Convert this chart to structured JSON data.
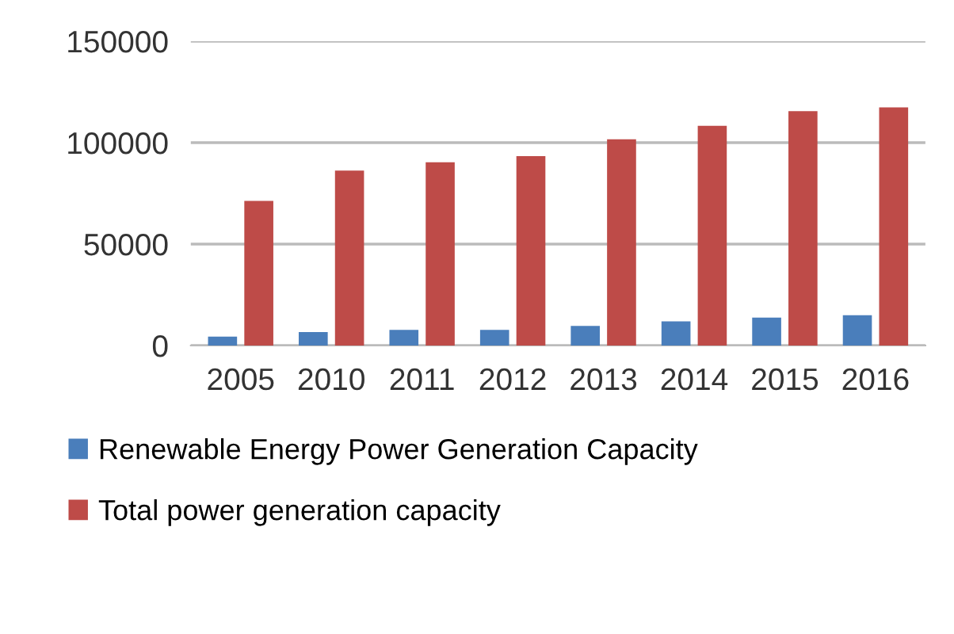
{
  "chart_data": {
    "type": "bar",
    "categories": [
      "2005",
      "2010",
      "2011",
      "2012",
      "2013",
      "2014",
      "2015",
      "2016"
    ],
    "series": [
      {
        "name": "Renewable Energy Power Generation Capacity",
        "color": "#4a7ebb",
        "values": [
          4400,
          6600,
          7700,
          7700,
          9700,
          11900,
          13800,
          14900
        ]
      },
      {
        "name": "Total power generation capacity",
        "color": "#be4b48",
        "values": [
          71300,
          86200,
          90300,
          93400,
          101700,
          108300,
          115500,
          117400
        ]
      }
    ],
    "ylim": [
      0,
      150000
    ],
    "yticks": [
      0,
      50000,
      100000,
      150000
    ],
    "grid": "y",
    "legend": "bottom"
  }
}
